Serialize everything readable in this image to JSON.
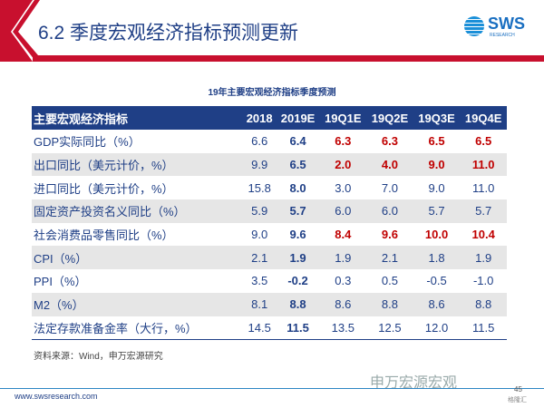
{
  "header": {
    "title": "6.2 季度宏观经济指标预测更新",
    "logo_text": "SWS",
    "logo_sub": "RESEARCH"
  },
  "table": {
    "caption": "19年主要宏观经济指标季度预测",
    "columns": [
      "主要宏观经济指标",
      "2018",
      "2019E",
      "19Q1E",
      "19Q2E",
      "19Q3E",
      "19Q4E"
    ],
    "rows": [
      [
        "GDP实际同比（%）",
        "6.6",
        "6.4",
        "6.3",
        "6.3",
        "6.5",
        "6.5"
      ],
      [
        "出口同比（美元计价，%）",
        "9.9",
        "6.5",
        "2.0",
        "4.0",
        "9.0",
        "11.0"
      ],
      [
        "进口同比（美元计价，%）",
        "15.8",
        "8.0",
        "3.0",
        "7.0",
        "9.0",
        "11.0"
      ],
      [
        "固定资产投资名义同比（%）",
        "5.9",
        "5.7",
        "6.0",
        "6.0",
        "5.7",
        "5.7"
      ],
      [
        "社会消费品零售同比（%）",
        "9.0",
        "9.6",
        "8.4",
        "9.6",
        "10.0",
        "10.4"
      ],
      [
        "CPI（%）",
        "2.1",
        "1.9",
        "1.9",
        "2.1",
        "1.8",
        "1.9"
      ],
      [
        "PPI（%）",
        "3.5",
        "-0.2",
        "0.3",
        "0.5",
        "-0.5",
        "-1.0"
      ],
      [
        "M2（%）",
        "8.1",
        "8.8",
        "8.6",
        "8.8",
        "8.6",
        "8.8"
      ],
      [
        "法定存款准备金率（大行，%）",
        "14.5",
        "11.5",
        "13.5",
        "12.5",
        "12.0",
        "11.5"
      ]
    ],
    "highlighted_rows": [
      0,
      1,
      4
    ],
    "colors": {
      "primary": "#1f3f86",
      "highlight": "#c00000",
      "brand_red": "#c8102e"
    }
  },
  "source": "资料来源：Wind，申万宏源研究",
  "footer": {
    "url": "www.swsresearch.com",
    "page": "45",
    "watermark": "申万宏源宏观",
    "watermark2": "格隆汇"
  }
}
